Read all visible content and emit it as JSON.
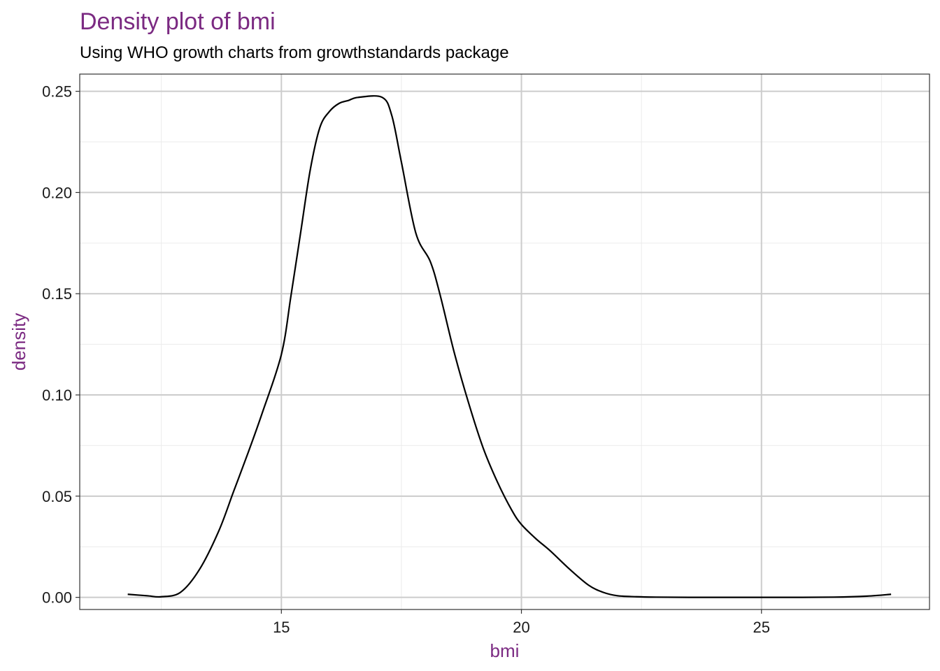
{
  "title": "Density plot of bmi",
  "subtitle": "Using WHO growth charts from growthstandards package",
  "colors": {
    "accent": "#7B2A82",
    "line": "#000000",
    "grid_major": "#cccccc",
    "grid_minor": "#ebebeb"
  },
  "chart_data": {
    "type": "line",
    "title": "Density plot of bmi",
    "subtitle": "Using WHO growth charts from growthstandards package",
    "xlabel": "bmi",
    "ylabel": "density",
    "xlim": [
      10.8,
      28.5
    ],
    "ylim": [
      -0.006,
      0.2585
    ],
    "x_ticks": [
      15,
      20,
      25
    ],
    "x_tick_labels": [
      "15",
      "20",
      "25"
    ],
    "y_ticks": [
      0,
      0.05,
      0.1,
      0.15,
      0.2,
      0.25
    ],
    "y_tick_labels": [
      "0.00",
      "0.05",
      "0.10",
      "0.15",
      "0.20",
      "0.25"
    ],
    "grid": true,
    "series": [
      {
        "x": [
          11.8,
          12.2,
          12.5,
          12.9,
          13.3,
          13.7,
          14.0,
          14.3,
          14.6,
          15.0,
          15.2,
          15.4,
          15.6,
          15.8,
          16.0,
          16.2,
          16.4,
          16.6,
          17.1,
          17.3,
          17.5,
          17.8,
          18.1,
          18.3,
          18.6,
          18.9,
          19.2,
          19.5,
          19.8,
          20.0,
          20.3,
          20.6,
          21.0,
          21.4,
          21.7,
          22.0,
          22.4,
          22.8,
          23.5,
          24.5,
          25.5,
          26.5,
          27.2,
          27.7
        ],
        "y": [
          0.0015,
          0.0008,
          0.0003,
          0.0025,
          0.014,
          0.033,
          0.052,
          0.071,
          0.091,
          0.12,
          0.149,
          0.18,
          0.211,
          0.232,
          0.24,
          0.244,
          0.2455,
          0.247,
          0.247,
          0.238,
          0.215,
          0.18,
          0.166,
          0.15,
          0.121,
          0.096,
          0.074,
          0.057,
          0.043,
          0.036,
          0.029,
          0.023,
          0.014,
          0.006,
          0.0025,
          0.0008,
          0.0003,
          0.0001,
          0.0,
          0.0,
          0.0,
          0.0001,
          0.0006,
          0.0015
        ]
      }
    ]
  }
}
